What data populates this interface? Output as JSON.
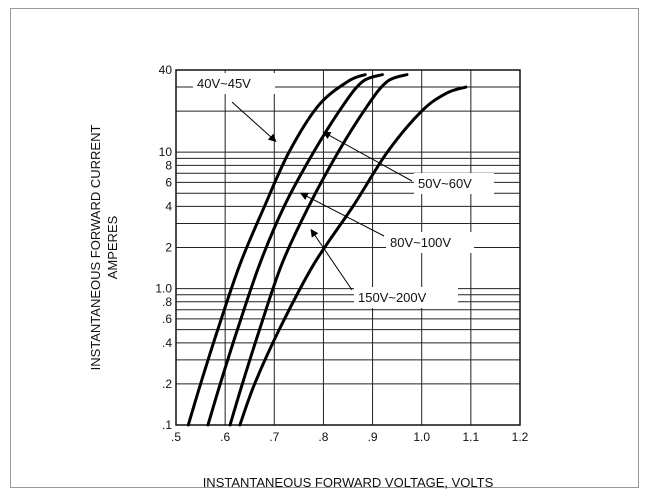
{
  "chart_data": {
    "type": "line",
    "title": "",
    "xlabel": "INSTANTANEOUS FORWARD VOLTAGE,   VOLTS",
    "ylabel_lines": [
      "INSTANTANEOUS FORWARD CURRENT",
      "AMPERES"
    ],
    "x_scale": "linear",
    "y_scale": "log",
    "xlim": [
      0.5,
      1.2
    ],
    "ylim": [
      0.1,
      40
    ],
    "grid": true,
    "x_ticks": [
      0.5,
      0.6,
      0.7,
      0.8,
      0.9,
      1.0,
      1.1,
      1.2
    ],
    "x_tick_labels": [
      ".5",
      ".6",
      ".7",
      ".8",
      ".9",
      "1.0",
      "1.1",
      "1.2"
    ],
    "y_ticks": [
      0.1,
      0.2,
      0.4,
      0.6,
      0.8,
      1.0,
      2,
      4,
      6,
      8,
      10,
      40
    ],
    "y_tick_labels": [
      ".1",
      ".2",
      ".4",
      ".6",
      ".8",
      "1.0",
      "2",
      "4",
      "6",
      "8",
      "10",
      "40"
    ],
    "series": [
      {
        "name": "40V~45V",
        "x": [
          0.525,
          0.55,
          0.585,
          0.63,
          0.68,
          0.73,
          0.79,
          0.85,
          0.885
        ],
        "y": [
          0.1,
          0.2,
          0.5,
          1.5,
          4,
          10,
          22,
          33,
          37
        ]
      },
      {
        "name": "50V~60V",
        "x": [
          0.565,
          0.59,
          0.625,
          0.67,
          0.72,
          0.78,
          0.84,
          0.88,
          0.92
        ],
        "y": [
          0.1,
          0.2,
          0.5,
          1.5,
          4,
          10,
          22,
          33,
          37
        ]
      },
      {
        "name": "80V~100V",
        "x": [
          0.61,
          0.635,
          0.67,
          0.715,
          0.77,
          0.83,
          0.89,
          0.93,
          0.97
        ],
        "y": [
          0.1,
          0.2,
          0.5,
          1.5,
          4,
          10,
          22,
          33,
          37
        ]
      },
      {
        "name": "150V~200V",
        "x": [
          0.63,
          0.66,
          0.71,
          0.78,
          0.86,
          0.93,
          1.0,
          1.05,
          1.09
        ],
        "y": [
          0.1,
          0.2,
          0.5,
          1.5,
          4,
          10,
          20,
          27,
          30
        ]
      }
    ],
    "annotations": [
      {
        "text": "40V~45V",
        "target_series": 0,
        "point": [
          0.703,
          12
        ]
      },
      {
        "text": "50V~60V",
        "target_series": 1,
        "point": [
          0.8,
          14
        ]
      },
      {
        "text": "80V~100V",
        "target_series": 2,
        "point": [
          0.754,
          5
        ]
      },
      {
        "text": "150V~200V",
        "target_series": 3,
        "point": [
          0.775,
          2.7
        ]
      }
    ]
  }
}
